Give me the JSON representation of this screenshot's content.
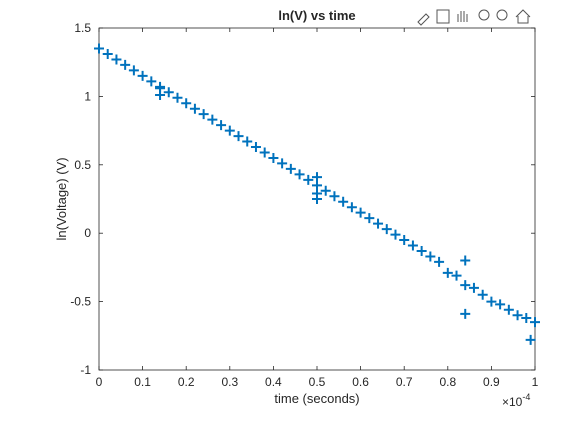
{
  "chart_data": {
    "type": "scatter",
    "title": "ln(V) vs time",
    "xlabel": "time (seconds)",
    "ylabel": "ln(Voltage) (V)",
    "x_multiplier": {
      "base": "×10",
      "exponent": "-4"
    },
    "series": [
      {
        "name": "ln(V)",
        "color": "#0072bd",
        "x": [
          0,
          0.02,
          0.04,
          0.06,
          0.08,
          0.1,
          0.12,
          0.14,
          0.14,
          0.14,
          0.16,
          0.18,
          0.2,
          0.22,
          0.24,
          0.26,
          0.28,
          0.3,
          0.32,
          0.34,
          0.36,
          0.38,
          0.4,
          0.42,
          0.44,
          0.46,
          0.48,
          0.5,
          0.5,
          0.5,
          0.5,
          0.52,
          0.54,
          0.56,
          0.58,
          0.6,
          0.62,
          0.64,
          0.66,
          0.68,
          0.7,
          0.72,
          0.74,
          0.76,
          0.78,
          0.8,
          0.82,
          0.84,
          0.84,
          0.84,
          0.86,
          0.88,
          0.9,
          0.92,
          0.94,
          0.96,
          0.98,
          0.99,
          1.0
        ],
        "values": [
          1.35,
          1.31,
          1.27,
          1.23,
          1.19,
          1.15,
          1.11,
          1.07,
          1.06,
          1.01,
          1.03,
          0.99,
          0.95,
          0.91,
          0.87,
          0.83,
          0.79,
          0.75,
          0.71,
          0.67,
          0.63,
          0.59,
          0.55,
          0.51,
          0.47,
          0.43,
          0.39,
          0.35,
          0.41,
          0.29,
          0.25,
          0.31,
          0.27,
          0.23,
          0.19,
          0.15,
          0.11,
          0.07,
          0.03,
          -0.01,
          -0.05,
          -0.09,
          -0.13,
          -0.17,
          -0.21,
          -0.29,
          -0.31,
          -0.38,
          -0.2,
          -0.59,
          -0.4,
          -0.45,
          -0.5,
          -0.52,
          -0.56,
          -0.6,
          -0.62,
          -0.78,
          -0.65
        ]
      }
    ],
    "xlim": [
      0,
      1
    ],
    "xticks": [
      0,
      0.1,
      0.2,
      0.3,
      0.4,
      0.5,
      0.6,
      0.7,
      0.8,
      0.9,
      1
    ],
    "ylim": [
      -1,
      1.5
    ],
    "yticks": [
      -1,
      -0.5,
      0,
      0.5,
      1,
      1.5
    ],
    "grid": false
  }
}
